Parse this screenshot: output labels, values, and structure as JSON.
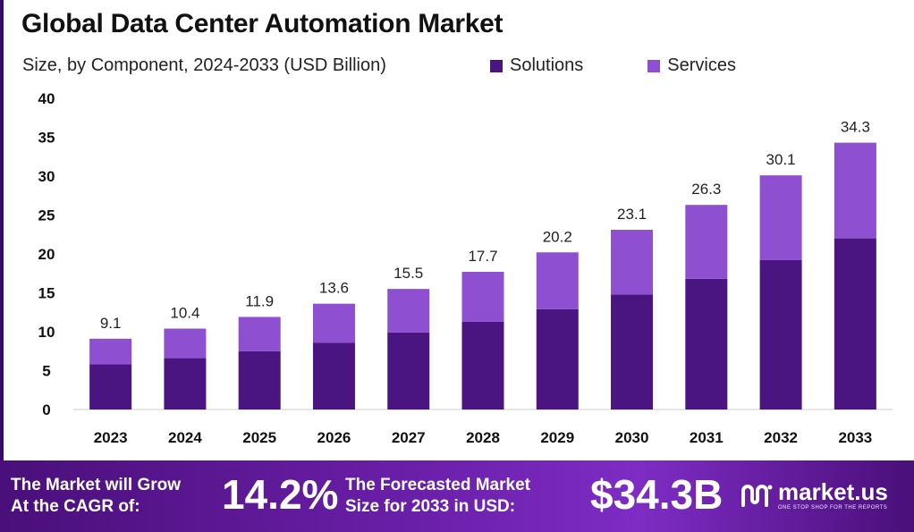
{
  "header": {
    "title": "Global Data Center Automation Market",
    "subtitle": "Size, by Component, 2024-2033 (USD Billion)"
  },
  "chart_data": {
    "type": "bar",
    "stacked": true,
    "categories": [
      "2023",
      "2024",
      "2025",
      "2026",
      "2027",
      "2028",
      "2029",
      "2030",
      "2031",
      "2032",
      "2033"
    ],
    "series": [
      {
        "name": "Solutions",
        "color": "#4b1581",
        "values": [
          5.8,
          6.6,
          7.5,
          8.6,
          9.9,
          11.3,
          12.9,
          14.8,
          16.8,
          19.2,
          22.0
        ]
      },
      {
        "name": "Services",
        "color": "#8e4fd1",
        "values": [
          3.3,
          3.8,
          4.4,
          5.0,
          5.6,
          6.4,
          7.3,
          8.3,
          9.5,
          10.9,
          12.3
        ]
      }
    ],
    "totals": [
      "9.1",
      "10.4",
      "11.9",
      "13.6",
      "15.5",
      "17.7",
      "20.2",
      "23.1",
      "26.3",
      "30.1",
      "34.3"
    ],
    "yticks": [
      "0",
      "5",
      "10",
      "15",
      "20",
      "25",
      "30",
      "35",
      "40"
    ],
    "ylim": [
      0,
      40
    ],
    "legend_position": "top-right",
    "grid": false
  },
  "footer": {
    "grow_text_line1": "The Market will Grow",
    "grow_text_line2": "At the CAGR of:",
    "cagr": "14.2%",
    "forecast_line1": "The Forecasted Market",
    "forecast_line2": "Size for 2033 in USD:",
    "forecast_value": "$34.3B",
    "brand_name": "market.us",
    "brand_tagline": "ONE STOP SHOP FOR THE REPORTS"
  }
}
